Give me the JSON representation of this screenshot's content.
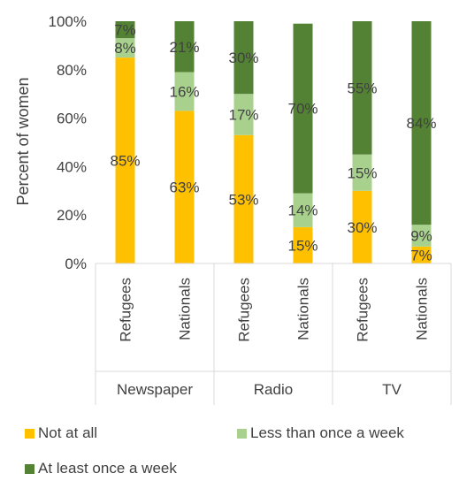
{
  "chart_data": {
    "type": "bar",
    "stacked": true,
    "ylabel": "Percent of women",
    "yticks": [
      "0%",
      "20%",
      "40%",
      "60%",
      "80%",
      "100%"
    ],
    "ylim": [
      0,
      100
    ],
    "groups": [
      {
        "name": "Newspaper",
        "categories": [
          "Refugees",
          "Nationals"
        ]
      },
      {
        "name": "Radio",
        "categories": [
          "Refugees",
          "Nationals"
        ]
      },
      {
        "name": "TV",
        "categories": [
          "Refugees",
          "Nationals"
        ]
      }
    ],
    "categories": [
      "Refugees",
      "Nationals",
      "Refugees",
      "Nationals",
      "Refugees",
      "Nationals"
    ],
    "series": [
      {
        "name": "Not at all",
        "color": "#FFC000",
        "values": [
          85,
          63,
          53,
          15,
          30,
          7
        ],
        "labels": [
          "85%",
          "63%",
          "53%",
          "15%",
          "30%",
          "7%"
        ]
      },
      {
        "name": "Less than once a week",
        "color": "#A9D18E",
        "values": [
          8,
          16,
          17,
          14,
          15,
          9
        ],
        "labels": [
          "8%",
          "16%",
          "17%",
          "14%",
          "15%",
          "9%"
        ]
      },
      {
        "name": "At least once a week",
        "color": "#548235",
        "values": [
          7,
          21,
          30,
          70,
          55,
          84
        ],
        "labels": [
          "7%",
          "21%",
          "30%",
          "70%",
          "55%",
          "84%"
        ]
      }
    ],
    "legend_position": "bottom",
    "grid": false
  }
}
